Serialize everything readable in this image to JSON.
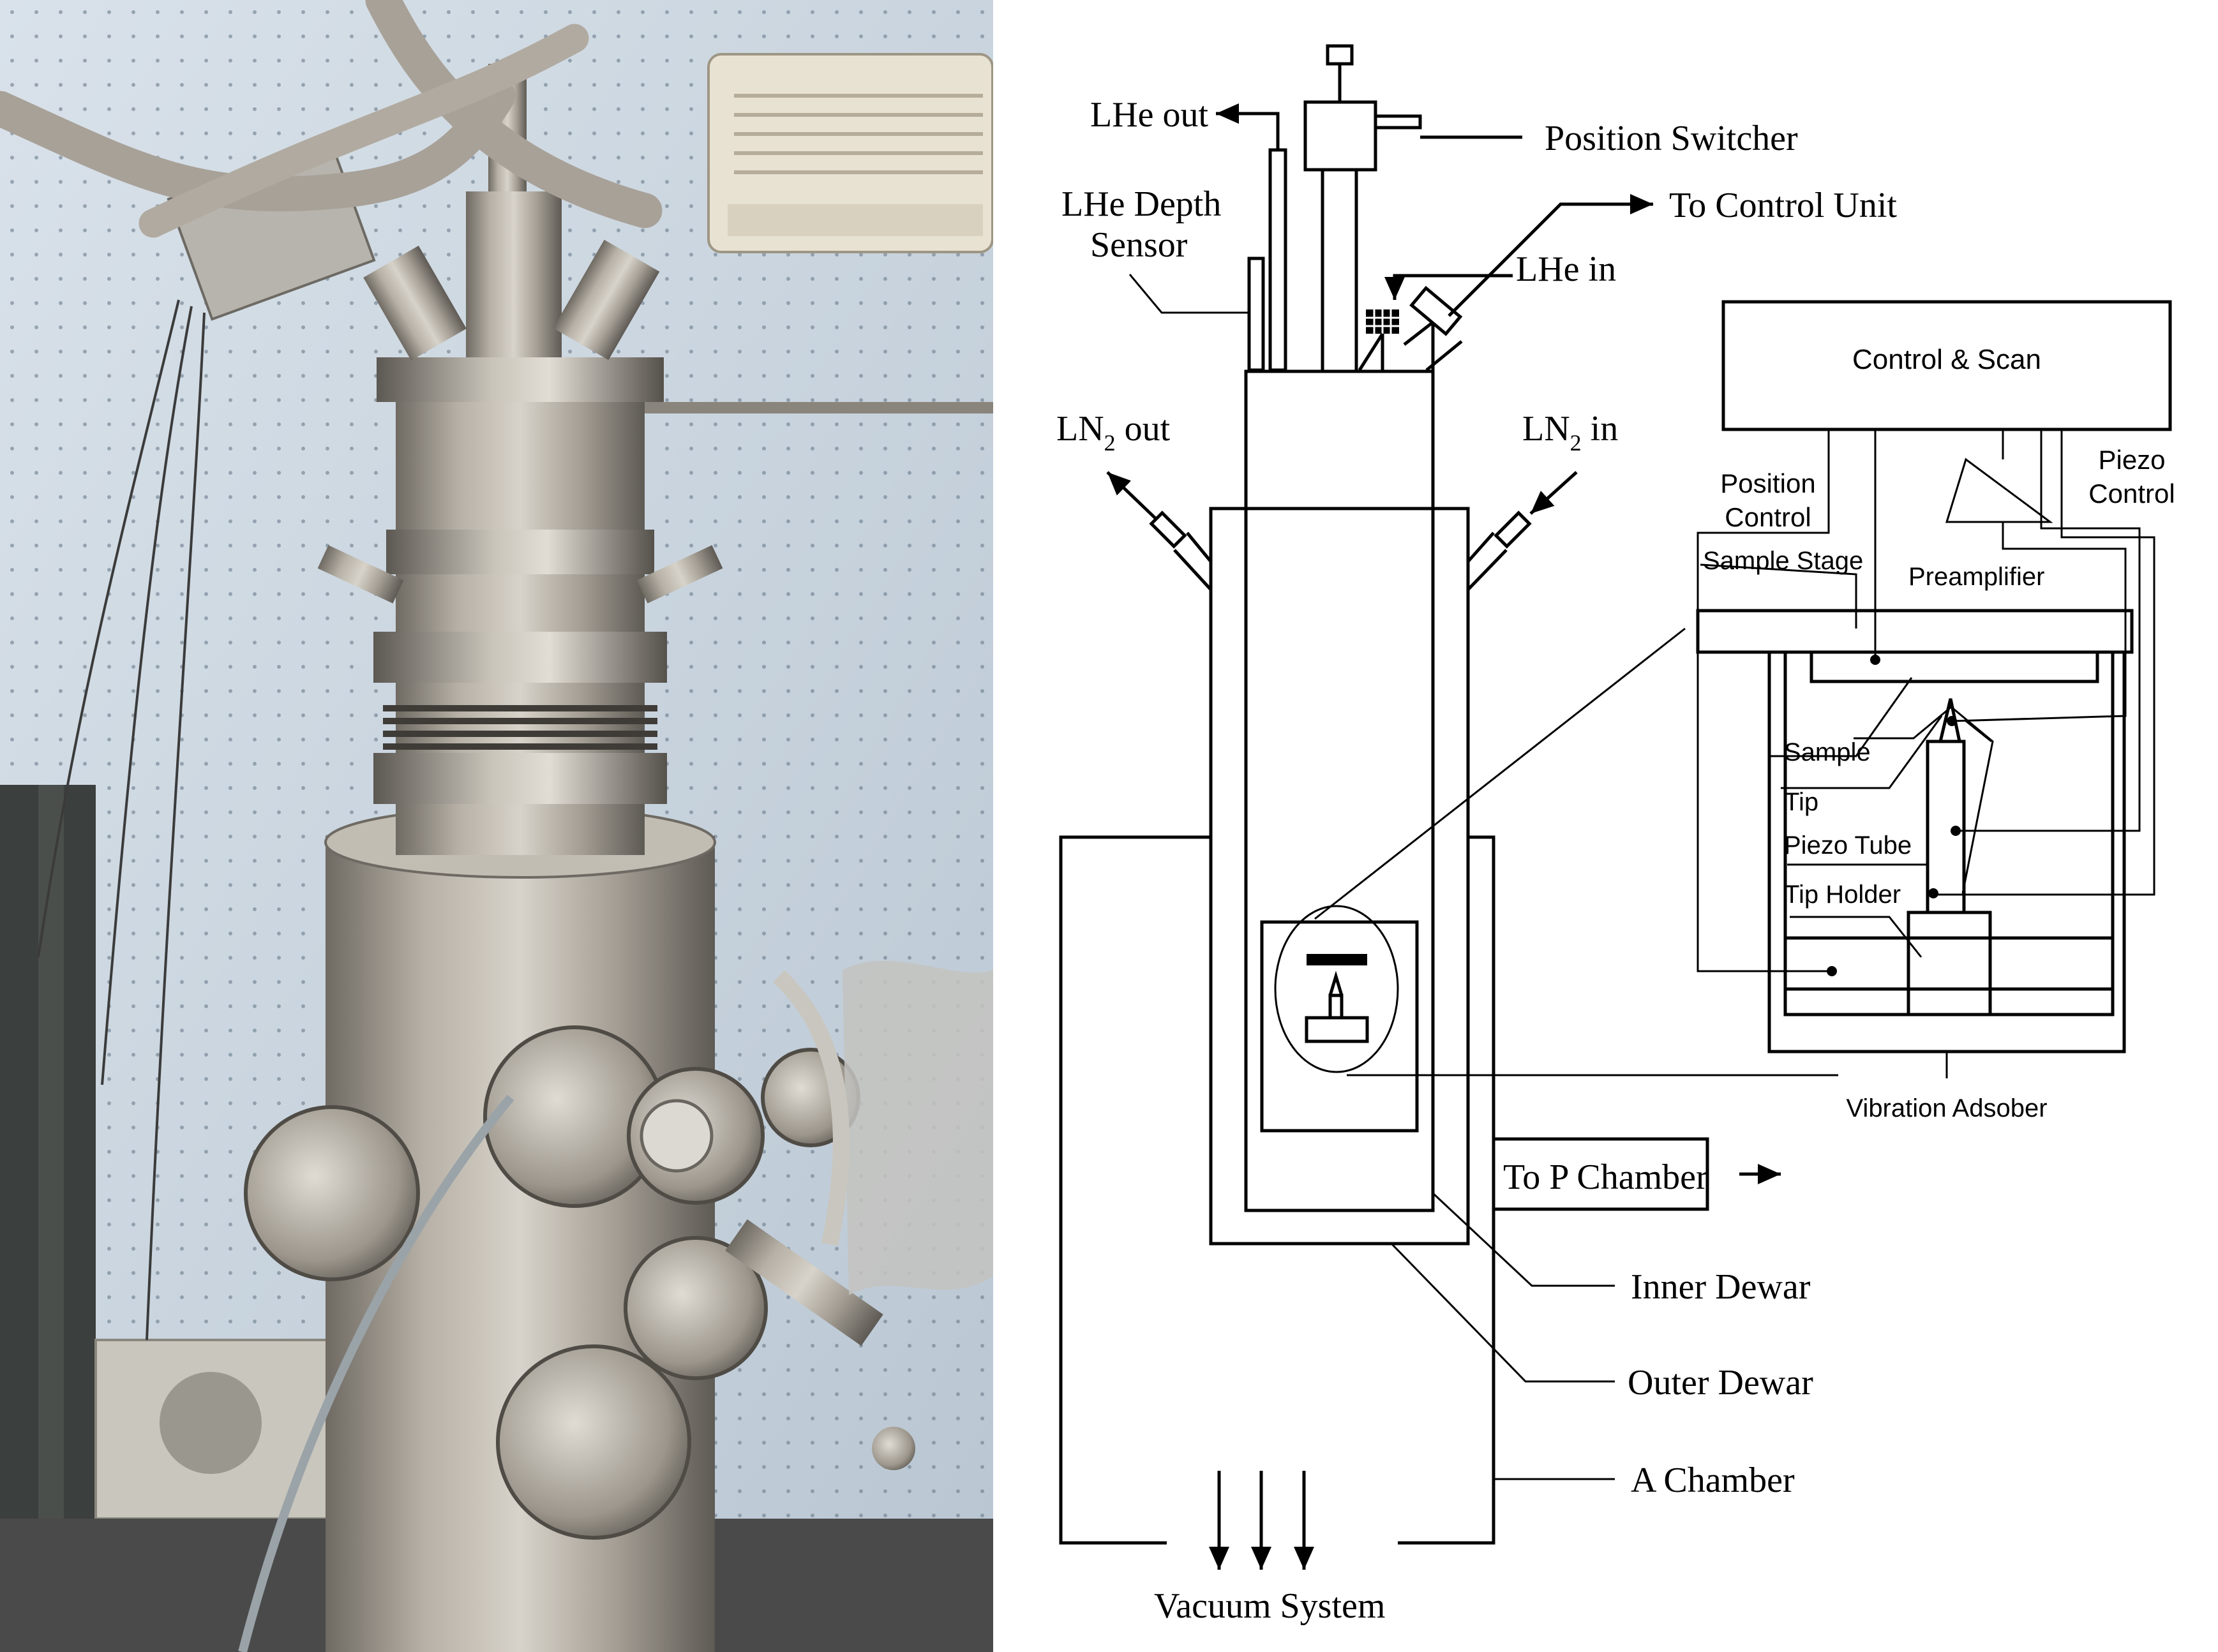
{
  "photo": {
    "alt": "Photograph of the low-temperature STM apparatus"
  },
  "diagram": {
    "labels": {
      "lhe_out": "LHe out",
      "position_switcher": "Position Switcher",
      "lhe_depth_1": "LHe Depth",
      "lhe_depth_2": "Sensor",
      "to_control_unit": "To Control Unit",
      "lhe_in": "LHe in",
      "ln2_out_a": "LN",
      "ln2_out_sub": "2",
      "ln2_out_b": " out",
      "ln2_in_a": "LN",
      "ln2_in_sub": "2",
      "ln2_in_b": " in",
      "to_p_chamber": "To P Chamber",
      "inner_dewar": "Inner Dewar",
      "outer_dewar": "Outer Dewar",
      "a_chamber": "A Chamber",
      "vacuum_system": "Vacuum System"
    },
    "inset": {
      "control_scan": "Control & Scan",
      "position_control_1": "Position",
      "position_control_2": "Control",
      "piezo_control_1": "Piezo",
      "piezo_control_2": "Control",
      "sample_stage": "Sample Stage",
      "preamplifier": "Preamplifier",
      "sample": "Sample",
      "tip": "Tip",
      "piezo_tube": "Piezo Tube",
      "tip_holder": "Tip Holder",
      "vibration_absorber": "Vibration Adsober"
    }
  }
}
